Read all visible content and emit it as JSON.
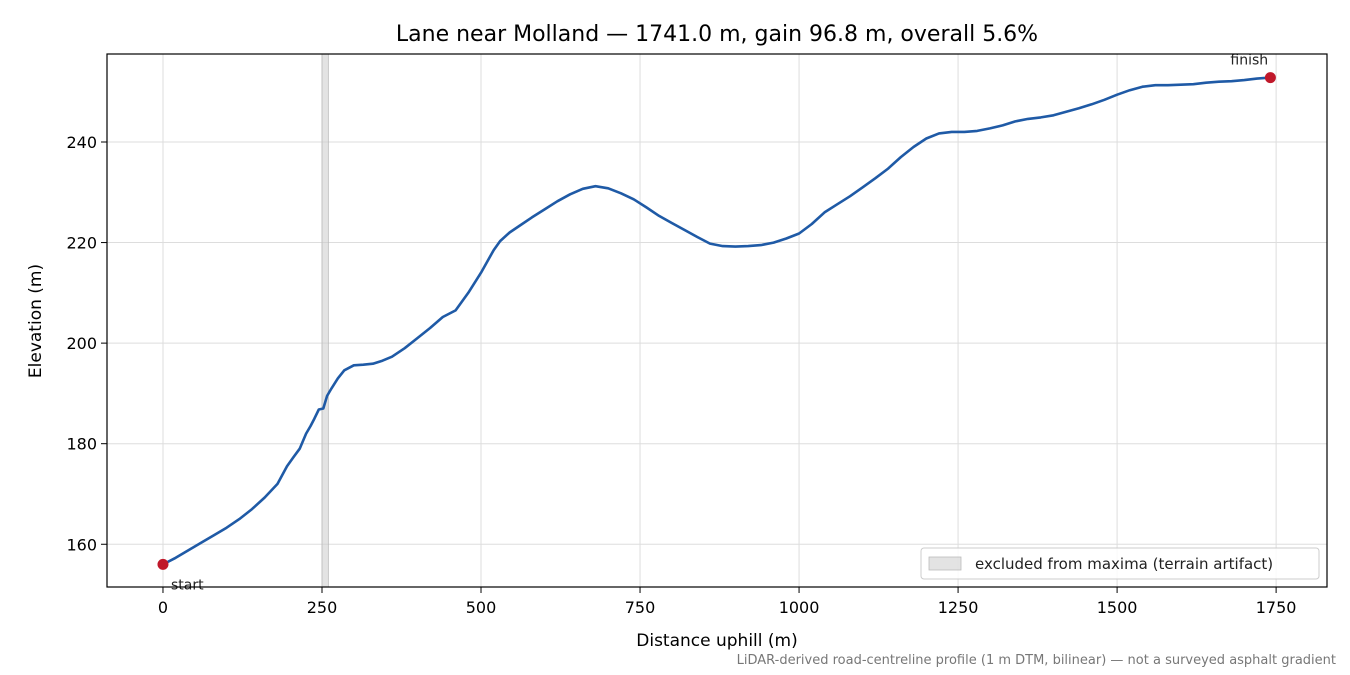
{
  "chart_data": {
    "type": "line",
    "title": "Lane near Molland — 1741.0 m, gain 96.8 m, overall 5.6%",
    "xlabel": "Distance uphill (m)",
    "ylabel": "Elevation (m)",
    "xlim": [
      -88,
      1830
    ],
    "ylim": [
      151.5,
      257.5
    ],
    "xticks": [
      0,
      250,
      500,
      750,
      1000,
      1250,
      1500,
      1750
    ],
    "yticks": [
      160,
      180,
      200,
      220,
      240
    ],
    "grid": true,
    "legend_position": "bottom-right",
    "series": [
      {
        "color": "#1f5aa6",
        "x": [
          0,
          20,
          40,
          60,
          80,
          100,
          120,
          140,
          160,
          180,
          195,
          205,
          215,
          225,
          232,
          238,
          245,
          252,
          258,
          265,
          275,
          285,
          300,
          315,
          330,
          345,
          360,
          380,
          400,
          420,
          440,
          460,
          480,
          500,
          520,
          530,
          545,
          560,
          580,
          600,
          620,
          640,
          660,
          680,
          700,
          720,
          740,
          760,
          780,
          800,
          820,
          840,
          860,
          880,
          900,
          920,
          940,
          960,
          980,
          1000,
          1020,
          1040,
          1060,
          1080,
          1100,
          1120,
          1140,
          1160,
          1180,
          1200,
          1220,
          1240,
          1260,
          1280,
          1300,
          1320,
          1340,
          1360,
          1380,
          1400,
          1420,
          1440,
          1460,
          1480,
          1500,
          1520,
          1540,
          1560,
          1580,
          1600,
          1620,
          1640,
          1660,
          1680,
          1700,
          1720,
          1741
        ],
        "y": [
          156.0,
          157.3,
          158.8,
          160.3,
          161.8,
          163.3,
          165.0,
          167.0,
          169.3,
          172.0,
          175.5,
          177.3,
          179.0,
          182.0,
          183.5,
          185.0,
          186.8,
          187.0,
          189.5,
          191.0,
          193.0,
          194.6,
          195.6,
          195.7,
          195.9,
          196.5,
          197.3,
          199.0,
          201.0,
          203.0,
          205.2,
          206.5,
          210.0,
          214.0,
          218.5,
          220.3,
          222.0,
          223.3,
          225.0,
          226.6,
          228.2,
          229.6,
          230.7,
          231.2,
          230.8,
          229.8,
          228.6,
          227.0,
          225.3,
          223.9,
          222.5,
          221.1,
          219.8,
          219.3,
          219.2,
          219.3,
          219.5,
          220.0,
          220.8,
          221.8,
          223.7,
          226.0,
          227.6,
          229.2,
          231.0,
          232.8,
          234.7,
          237.0,
          239.0,
          240.7,
          241.7,
          242.0,
          242.0,
          242.2,
          242.7,
          243.3,
          244.1,
          244.6,
          244.9,
          245.3,
          246.0,
          246.7,
          247.5,
          248.4,
          249.4,
          250.3,
          251.0,
          251.3,
          251.3,
          251.4,
          251.5,
          251.8,
          252.0,
          252.1,
          252.3,
          252.6,
          252.8
        ]
      }
    ],
    "markers": [
      {
        "x": 0,
        "y": 156.0,
        "label": "start"
      },
      {
        "x": 1741,
        "y": 252.8,
        "label": "finish"
      }
    ],
    "excluded_span": [
      250,
      260
    ],
    "legend": [
      {
        "label": "excluded from maxima (terrain artifact)"
      }
    ],
    "footnote": "LiDAR-derived road-centreline profile (1 m DTM, bilinear) — not a surveyed asphalt gradient",
    "colors": {
      "line": "#1f5aa6",
      "marker": "#c0182a",
      "excluded_fill": "#cccccc",
      "grid": "#dddddd"
    }
  }
}
